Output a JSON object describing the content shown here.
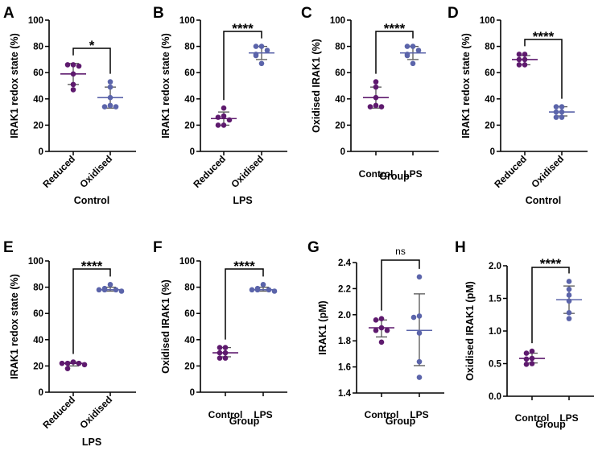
{
  "colors": {
    "reduced_control": "#5e1a6e",
    "oxidised_lps": "#5b64aa",
    "axis": "#000000",
    "errorbar": "#555555"
  },
  "chart_data": [
    {
      "panel": "A",
      "type": "scatter",
      "ylabel": "IRAK1 redox state (%)",
      "xlabel": "Control",
      "categories": [
        "Reduced",
        "Oxidised"
      ],
      "rotated_categories": true,
      "yticks": [
        "0",
        "20",
        "40",
        "60",
        "80",
        "100"
      ],
      "ylim": [
        0,
        100
      ],
      "significance": "*",
      "series": [
        {
          "name": "Reduced",
          "color_key": "reduced_control",
          "values": [
            66,
            66,
            65,
            59,
            51,
            47
          ],
          "mean": 59,
          "sd_low": 51,
          "sd_high": 67
        },
        {
          "name": "Oxidised",
          "color_key": "oxidised_lps",
          "values": [
            53,
            49,
            41,
            35,
            34,
            34
          ],
          "mean": 41,
          "sd_low": 33,
          "sd_high": 49
        }
      ]
    },
    {
      "panel": "B",
      "type": "scatter",
      "ylabel": "IRAK1 redox state (%)",
      "xlabel": "LPS",
      "categories": [
        "Reduced",
        "Oxidised"
      ],
      "rotated_categories": true,
      "yticks": [
        "0",
        "20",
        "40",
        "60",
        "80",
        "100"
      ],
      "ylim": [
        0,
        100
      ],
      "significance": "****",
      "series": [
        {
          "name": "Reduced",
          "color_key": "reduced_control",
          "values": [
            33,
            27,
            26,
            24,
            20,
            20
          ],
          "mean": 25,
          "sd_low": 20,
          "sd_high": 30
        },
        {
          "name": "Oxidised",
          "color_key": "oxidised_lps",
          "values": [
            80,
            80,
            77,
            74,
            73,
            67
          ],
          "mean": 75,
          "sd_low": 70,
          "sd_high": 80
        }
      ]
    },
    {
      "panel": "C",
      "type": "scatter",
      "ylabel": "Oxidised IRAK1 (%)",
      "xlabel": "Group",
      "categories": [
        "Control",
        "LPS"
      ],
      "rotated_categories": false,
      "yticks": [
        "0",
        "20",
        "40",
        "60",
        "80",
        "100"
      ],
      "ylim": [
        0,
        100
      ],
      "significance": "****",
      "series": [
        {
          "name": "Control",
          "color_key": "reduced_control",
          "values": [
            53,
            49,
            41,
            35,
            34,
            34
          ],
          "mean": 41,
          "sd_low": 33,
          "sd_high": 49
        },
        {
          "name": "LPS",
          "color_key": "oxidised_lps",
          "values": [
            80,
            80,
            77,
            74,
            73,
            67
          ],
          "mean": 75,
          "sd_low": 70,
          "sd_high": 80
        }
      ]
    },
    {
      "panel": "D",
      "type": "scatter",
      "ylabel": "IRAK1 redox state (%)",
      "xlabel": "Control",
      "categories": [
        "Reduced",
        "Oxidised"
      ],
      "rotated_categories": true,
      "yticks": [
        "0",
        "20",
        "40",
        "60",
        "80",
        "100"
      ],
      "ylim": [
        0,
        100
      ],
      "significance": "****",
      "series": [
        {
          "name": "Reduced",
          "color_key": "reduced_control",
          "values": [
            74,
            74,
            70,
            70,
            66,
            66
          ],
          "mean": 70,
          "sd_low": 66,
          "sd_high": 73
        },
        {
          "name": "Oxidised",
          "color_key": "oxidised_lps",
          "values": [
            34,
            34,
            30,
            30,
            26,
            26
          ],
          "mean": 30,
          "sd_low": 27,
          "sd_high": 34
        }
      ]
    },
    {
      "panel": "E",
      "type": "scatter",
      "ylabel": "IRAK1 redox state (%)",
      "xlabel": "LPS",
      "categories": [
        "Reduced",
        "Oxidised"
      ],
      "rotated_categories": true,
      "yticks": [
        "0",
        "20",
        "40",
        "60",
        "80",
        "100"
      ],
      "ylim": [
        0,
        100
      ],
      "significance": "****",
      "series": [
        {
          "name": "Reduced",
          "color_key": "reduced_control",
          "values": [
            23,
            22,
            22,
            22,
            21,
            18
          ],
          "mean": 22,
          "sd_low": 20,
          "sd_high": 23
        },
        {
          "name": "Oxidised",
          "color_key": "oxidised_lps",
          "values": [
            82,
            79,
            78,
            78,
            78,
            77
          ],
          "mean": 78,
          "sd_low": 77,
          "sd_high": 80
        }
      ]
    },
    {
      "panel": "F",
      "type": "scatter",
      "ylabel": "Oxidised IRAK1 (%)",
      "xlabel": "Group",
      "categories": [
        "Control",
        "LPS"
      ],
      "rotated_categories": false,
      "yticks": [
        "0",
        "20",
        "40",
        "60",
        "80",
        "100"
      ],
      "ylim": [
        0,
        100
      ],
      "significance": "****",
      "series": [
        {
          "name": "Control",
          "color_key": "reduced_control",
          "values": [
            34,
            34,
            30,
            30,
            26,
            26
          ],
          "mean": 30,
          "sd_low": 27,
          "sd_high": 34
        },
        {
          "name": "LPS",
          "color_key": "oxidised_lps",
          "values": [
            82,
            79,
            78,
            78,
            78,
            77
          ],
          "mean": 78,
          "sd_low": 77,
          "sd_high": 80
        }
      ]
    },
    {
      "panel": "G",
      "type": "scatter",
      "ylabel": "IRAK1 (pM)",
      "xlabel": "Group",
      "categories": [
        "Control",
        "LPS"
      ],
      "rotated_categories": false,
      "yticks": [
        "1.4",
        "1.6",
        "1.8",
        "2.0",
        "2.2",
        "2.4"
      ],
      "ylim": [
        1.4,
        2.4
      ],
      "significance": "ns",
      "series": [
        {
          "name": "Control",
          "color_key": "reduced_control",
          "values": [
            1.97,
            1.96,
            1.9,
            1.88,
            1.88,
            1.79
          ],
          "mean": 1.9,
          "sd_low": 1.83,
          "sd_high": 1.96
        },
        {
          "name": "LPS",
          "color_key": "oxidised_lps",
          "values": [
            2.29,
            1.99,
            1.98,
            1.86,
            1.64,
            1.52
          ],
          "mean": 1.88,
          "sd_low": 1.61,
          "sd_high": 2.16
        }
      ]
    },
    {
      "panel": "H",
      "type": "scatter",
      "ylabel": "Oxidised IRAK1 (pM)",
      "xlabel": "Group",
      "categories": [
        "Control",
        "LPS"
      ],
      "rotated_categories": false,
      "yticks": [
        "0.0",
        "0.5",
        "1.0",
        "1.5",
        "2.0"
      ],
      "ylim": [
        0.0,
        2.0
      ],
      "significance": "****",
      "series": [
        {
          "name": "Control",
          "color_key": "reduced_control",
          "values": [
            0.69,
            0.66,
            0.58,
            0.57,
            0.5,
            0.49
          ],
          "mean": 0.58,
          "sd_low": 0.51,
          "sd_high": 0.66
        },
        {
          "name": "LPS",
          "color_key": "oxidised_lps",
          "values": [
            1.76,
            1.64,
            1.55,
            1.46,
            1.28,
            1.19
          ],
          "mean": 1.48,
          "sd_low": 1.27,
          "sd_high": 1.69
        }
      ]
    }
  ]
}
